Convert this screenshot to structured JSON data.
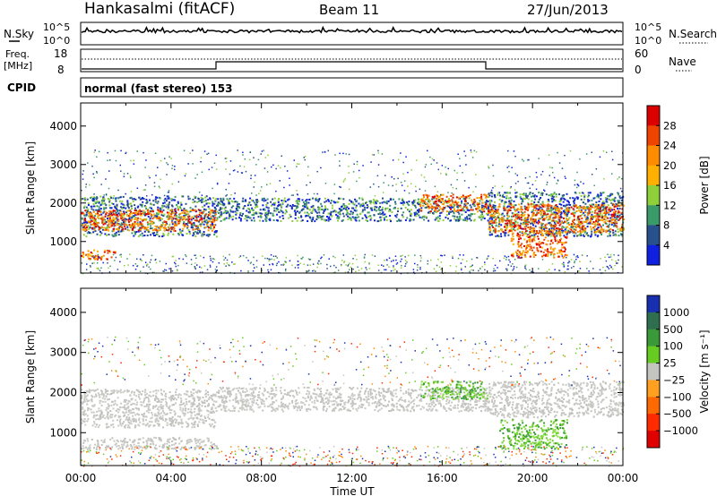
{
  "header": {
    "station": "Hankasalmi (fitACF)",
    "beam": "Beam 11",
    "date": "27/Jun/2013"
  },
  "top_panels": {
    "nsky_label": "N.Sky",
    "nsearch_label": "N.Search",
    "noise_ticks": [
      "10^5",
      "10^0"
    ],
    "freq_label": "Freq.",
    "freq_unit": "[MHz]",
    "freq_ticks": [
      "18",
      "8"
    ],
    "nave_label": "Nave",
    "nave_ticks": [
      "60",
      "0"
    ],
    "cpid_label": "CPID",
    "cpid_text": "normal (fast stereo) 153"
  },
  "chart_data": [
    {
      "type": "heatmap",
      "title": "",
      "ylabel": "Slant Range [km]",
      "xlabel": "",
      "ylim": [
        180,
        4600
      ],
      "yticks": [
        1000,
        2000,
        3000,
        4000
      ],
      "colorbar_label": "Power [dB]",
      "colorbar_ticks": [
        "28",
        "24",
        "20",
        "16",
        "12",
        "8",
        "4"
      ],
      "colorbar_colors": [
        "#dd0000",
        "#ee4400",
        "#ff8c00",
        "#ffb000",
        "#8ecf3a",
        "#3a9a6a",
        "#28508c",
        "#1020e0"
      ],
      "bands": [
        {
          "t0": 0.0,
          "t1": 6.0,
          "r0": 1150,
          "r1": 2200,
          "level": "mid"
        },
        {
          "t0": 0.0,
          "t1": 6.0,
          "r0": 1300,
          "r1": 1850,
          "level": "high"
        },
        {
          "t0": 0.0,
          "t1": 1.5,
          "r0": 550,
          "r1": 800,
          "level": "high"
        },
        {
          "t0": 6.0,
          "t1": 18.0,
          "r0": 1550,
          "r1": 2150,
          "level": "mid"
        },
        {
          "t0": 15.0,
          "t1": 18.0,
          "r0": 1800,
          "r1": 2250,
          "level": "high"
        },
        {
          "t0": 18.0,
          "t1": 24.0,
          "r0": 1150,
          "r1": 2300,
          "level": "mid"
        },
        {
          "t0": 18.0,
          "t1": 24.0,
          "r0": 1250,
          "r1": 2000,
          "level": "high"
        },
        {
          "t0": 19.0,
          "t1": 21.5,
          "r0": 600,
          "r1": 1250,
          "level": "high"
        }
      ]
    },
    {
      "type": "heatmap",
      "title": "",
      "ylabel": "Slant Range [km]",
      "xlabel": "Time UT",
      "ylim": [
        180,
        4600
      ],
      "yticks": [
        1000,
        2000,
        3000,
        4000
      ],
      "xticks": [
        "00:00",
        "04:00",
        "08:00",
        "12:00",
        "16:00",
        "20:00",
        "00:00"
      ],
      "colorbar_label": "Velocity [m s⁻¹]",
      "colorbar_ticks": [
        "1000",
        "500",
        "100",
        "25",
        "−25",
        "−100",
        "−500",
        "−1000"
      ],
      "colorbar_colors": [
        "#1830b0",
        "#2f6f50",
        "#3a9a3a",
        "#66cc22",
        "#c4c4c0",
        "#ffa020",
        "#ff6a00",
        "#ff2a00",
        "#e00000"
      ],
      "bands": [
        {
          "t0": 0.0,
          "t1": 6.0,
          "r0": 1150,
          "r1": 2100,
          "level": "gray"
        },
        {
          "t0": 0.0,
          "t1": 6.0,
          "r0": 600,
          "r1": 900,
          "level": "gray"
        },
        {
          "t0": 6.0,
          "t1": 18.0,
          "r0": 1550,
          "r1": 2150,
          "level": "gray"
        },
        {
          "t0": 15.0,
          "t1": 18.0,
          "r0": 1850,
          "r1": 2300,
          "level": "green"
        },
        {
          "t0": 18.0,
          "t1": 24.0,
          "r0": 1400,
          "r1": 2300,
          "level": "gray"
        },
        {
          "t0": 18.5,
          "t1": 21.5,
          "r0": 600,
          "r1": 1350,
          "level": "green"
        }
      ]
    }
  ]
}
